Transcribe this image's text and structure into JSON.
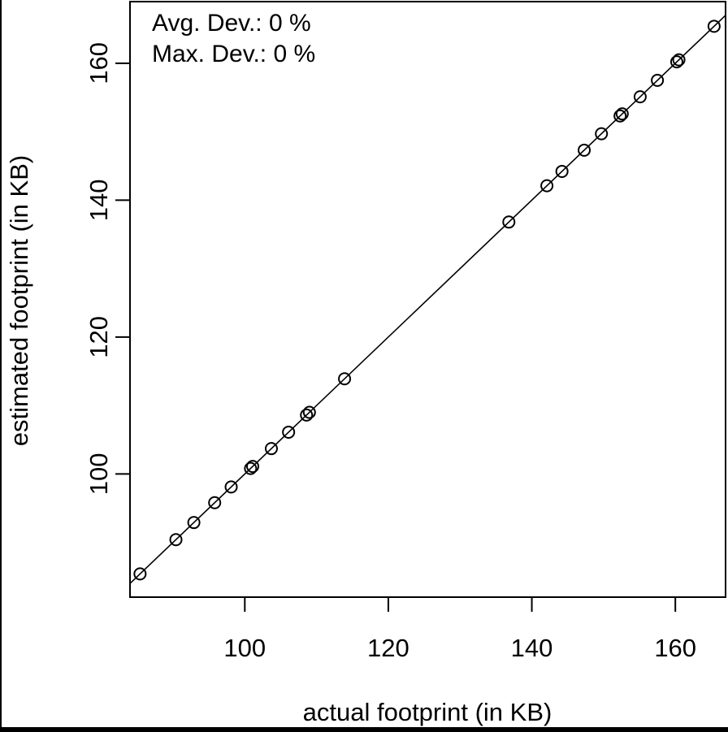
{
  "chart_data": {
    "type": "scatter",
    "xlabel": "actual footprint (in KB)",
    "ylabel": "estimated footprint (in KB)",
    "xlim": [
      84,
      167
    ],
    "ylim": [
      82,
      169
    ],
    "x_ticks": [
      100,
      120,
      140,
      160
    ],
    "y_ticks": [
      100,
      120,
      140,
      160
    ],
    "x_tick_labels": [
      "100",
      "120",
      "140",
      "160"
    ],
    "y_tick_labels": [
      "100",
      "120",
      "140",
      "160"
    ],
    "annotations": [
      "Avg. Dev.: 0 %",
      "Max. Dev.: 0 %"
    ],
    "reference_line": "y = x",
    "grid": false,
    "legend": "none",
    "points": [
      [
        85.4,
        85.4
      ],
      [
        90.4,
        90.4
      ],
      [
        92.9,
        92.9
      ],
      [
        95.8,
        95.8
      ],
      [
        98.1,
        98.1
      ],
      [
        100.8,
        100.8
      ],
      [
        101.1,
        101.1
      ],
      [
        103.7,
        103.7
      ],
      [
        106.1,
        106.1
      ],
      [
        108.6,
        108.6
      ],
      [
        109.0,
        109.0
      ],
      [
        113.9,
        113.9
      ],
      [
        136.8,
        136.8
      ],
      [
        142.1,
        142.1
      ],
      [
        144.2,
        144.2
      ],
      [
        147.3,
        147.3
      ],
      [
        149.7,
        149.7
      ],
      [
        152.3,
        152.3
      ],
      [
        152.6,
        152.6
      ],
      [
        155.1,
        155.1
      ],
      [
        157.5,
        157.5
      ],
      [
        160.2,
        160.2
      ],
      [
        160.5,
        160.5
      ],
      [
        165.4,
        165.4
      ]
    ],
    "marker": "open-circle",
    "color": "#000000"
  }
}
